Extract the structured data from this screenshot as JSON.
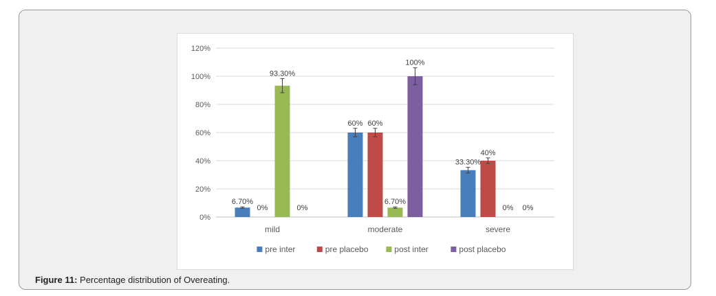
{
  "figure": {
    "caption_label": "Figure 11:",
    "caption_text": " Percentage distribution of Overeating."
  },
  "chart_data": {
    "type": "bar",
    "categories": [
      "mild",
      "moderate",
      "severe"
    ],
    "series": [
      {
        "name": "pre inter",
        "color": "#4a7ebb",
        "values": [
          6.7,
          60,
          33.3
        ],
        "labels": [
          "6.70%",
          "60%",
          "33.30%"
        ],
        "errors": [
          0.5,
          3,
          2
        ]
      },
      {
        "name": "pre placebo",
        "color": "#be4b48",
        "values": [
          0,
          60,
          40
        ],
        "labels": [
          "0%",
          "60%",
          "40%"
        ],
        "errors": [
          0,
          3,
          2
        ]
      },
      {
        "name": "post inter",
        "color": "#98b954",
        "values": [
          93.3,
          6.7,
          0
        ],
        "labels": [
          "93.30%",
          "6.70%",
          "0%"
        ],
        "errors": [
          5,
          0.5,
          0
        ]
      },
      {
        "name": "post placebo",
        "color": "#7d5fa0",
        "values": [
          0,
          100,
          0
        ],
        "labels": [
          "0%",
          "100%",
          "0%"
        ],
        "errors": [
          0,
          6,
          0
        ]
      }
    ],
    "yticks": [
      "0%",
      "20%",
      "40%",
      "60%",
      "80%",
      "100%",
      "120%"
    ],
    "ylim": [
      0,
      120
    ],
    "grid": true,
    "legend_position": "bottom",
    "error_bars": true
  }
}
